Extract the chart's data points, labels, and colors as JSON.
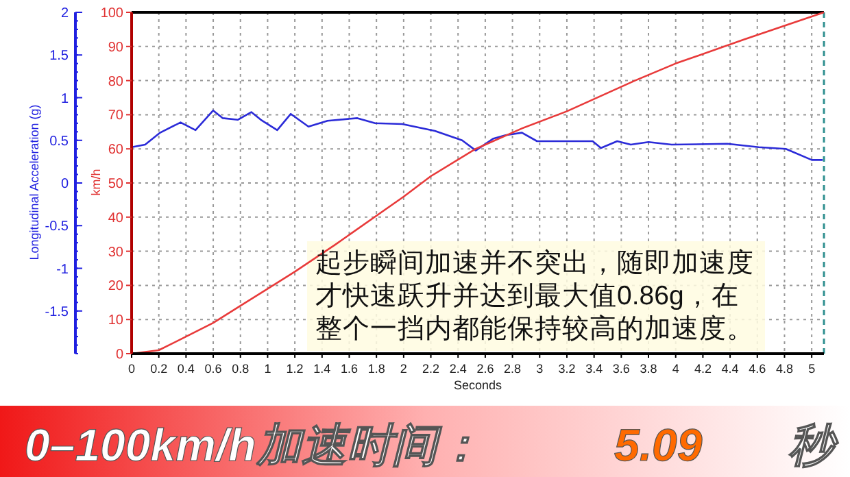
{
  "chart_data": {
    "type": "line",
    "xlabel": "Seconds",
    "ylabel": "Longitudinal Acceleration (g)",
    "y2label": "km/h",
    "xlim": [
      0,
      5.09
    ],
    "xticks": [
      0,
      0.2,
      0.4,
      0.6,
      0.8,
      1,
      1.2,
      1.4,
      1.6,
      1.8,
      2,
      2.2,
      2.4,
      2.6,
      2.8,
      3,
      3.2,
      3.4,
      3.6,
      3.8,
      4,
      4.2,
      4.4,
      4.6,
      4.8,
      5
    ],
    "ylim": [
      -2,
      2
    ],
    "yticks": [
      2,
      1.5,
      1,
      0.5,
      0,
      -0.5,
      -1,
      -1.5
    ],
    "y2lim": [
      0,
      100
    ],
    "y2ticks": [
      0,
      10,
      20,
      30,
      40,
      50,
      60,
      70,
      80,
      90,
      100
    ],
    "grid": true,
    "series": [
      {
        "color": "#2b2bd8",
        "axis": "y",
        "x": [
          0,
          0.1,
          0.21,
          0.36,
          0.47,
          0.6,
          0.67,
          0.78,
          0.88,
          0.95,
          1.07,
          1.17,
          1.3,
          1.44,
          1.66,
          1.79,
          1.99,
          2.23,
          2.43,
          2.53,
          2.66,
          2.75,
          2.87,
          2.98,
          3.17,
          3.39,
          3.45,
          3.57,
          3.67,
          3.8,
          3.97,
          4.38,
          4.61,
          4.81,
          5.0,
          5.08
        ],
        "values": [
          0.42,
          0.45,
          0.59,
          0.71,
          0.62,
          0.85,
          0.76,
          0.74,
          0.83,
          0.74,
          0.62,
          0.81,
          0.66,
          0.73,
          0.76,
          0.7,
          0.69,
          0.61,
          0.5,
          0.38,
          0.52,
          0.56,
          0.59,
          0.49,
          0.49,
          0.49,
          0.41,
          0.49,
          0.45,
          0.48,
          0.45,
          0.46,
          0.42,
          0.4,
          0.27,
          0.27
        ]
      },
      {
        "color": "#e83a3a",
        "axis": "y2",
        "x": [
          0,
          0.2,
          0.4,
          0.6,
          0.8,
          1,
          1.2,
          1.5,
          2,
          2.2,
          2.53,
          2.87,
          3.2,
          3.7,
          4,
          4.5,
          5.09
        ],
        "values": [
          0,
          1,
          5,
          9,
          14,
          19,
          24,
          32,
          46,
          52,
          60,
          66,
          71,
          80,
          85,
          92,
          100
        ]
      }
    ],
    "ref_lines": [
      {
        "axis": "x",
        "value": 5.09,
        "color": "#2f8f8f",
        "line_style": "dashed"
      }
    ],
    "annotations": [
      "起步瞬间加速并不突出，随即加速度才快速跃升并达到最大值0.86g，在整个一挡内都能保持较高的加速度。",
      "0–100km/h加速时间：",
      "5.09",
      "秒"
    ]
  }
}
